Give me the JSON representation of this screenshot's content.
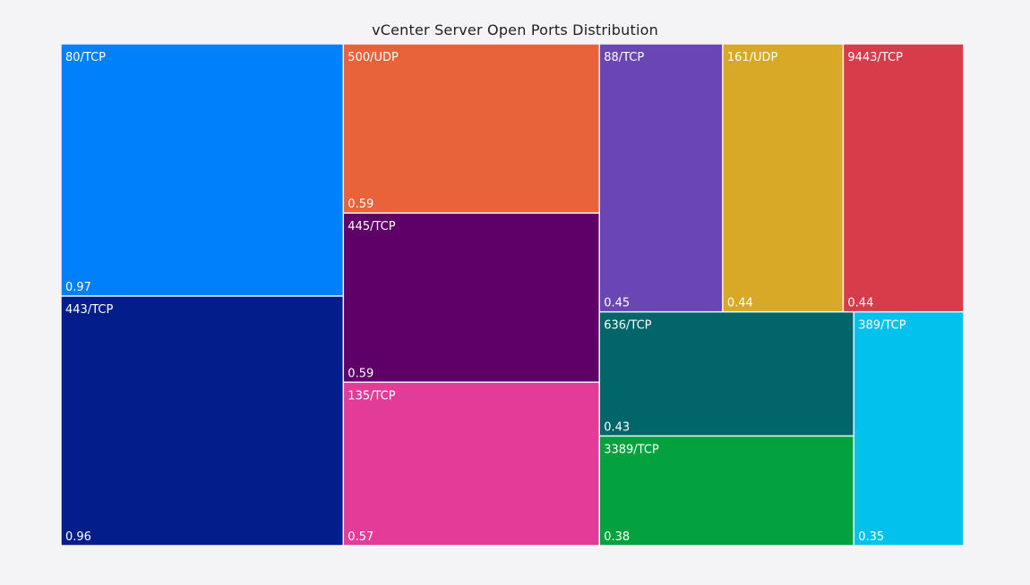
{
  "chart_data": {
    "type": "treemap",
    "title": "vCenter Server Open Ports Distribution",
    "items": [
      {
        "label": "80/TCP",
        "value": 0.97,
        "color": "#0180fb"
      },
      {
        "label": "443/TCP",
        "value": 0.96,
        "color": "#031e8a"
      },
      {
        "label": "500/UDP",
        "value": 0.59,
        "color": "#e8623a"
      },
      {
        "label": "445/TCP",
        "value": 0.59,
        "color": "#5f0068"
      },
      {
        "label": "135/TCP",
        "value": 0.57,
        "color": "#e23c98"
      },
      {
        "label": "88/TCP",
        "value": 0.45,
        "color": "#6a46b4"
      },
      {
        "label": "161/UDP",
        "value": 0.44,
        "color": "#d8a926"
      },
      {
        "label": "9443/TCP",
        "value": 0.44,
        "color": "#d63c4a"
      },
      {
        "label": "636/TCP",
        "value": 0.43,
        "color": "#02656a"
      },
      {
        "label": "3389/TCP",
        "value": 0.38,
        "color": "#03a23f"
      },
      {
        "label": "389/TCP",
        "value": 0.35,
        "color": "#02c1ed"
      }
    ]
  }
}
